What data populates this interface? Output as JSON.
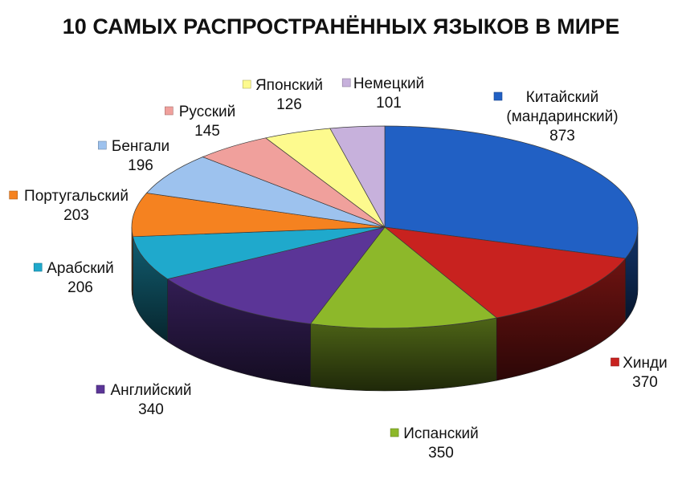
{
  "chart_data": {
    "type": "pie",
    "title": "10 САМЫХ РАСПРОСТРАНЁННЫХ ЯЗЫКОВ В МИРЕ",
    "legend": "labels-outside",
    "slices": [
      {
        "label": [
          "Китайский",
          "(мандаринский)"
        ],
        "value": 873,
        "color": "#2160c4"
      },
      {
        "label": [
          "Хинди"
        ],
        "value": 370,
        "color": "#c8221f"
      },
      {
        "label": [
          "Испанский"
        ],
        "value": 350,
        "color": "#8db82a"
      },
      {
        "label": [
          "Английский"
        ],
        "value": 340,
        "color": "#5b3597"
      },
      {
        "label": [
          "Арабский"
        ],
        "value": 206,
        "color": "#1fa9cc"
      },
      {
        "label": [
          "Португальский"
        ],
        "value": 203,
        "color": "#f58220"
      },
      {
        "label": [
          "Бенгали"
        ],
        "value": 196,
        "color": "#9dc2ee"
      },
      {
        "label": [
          "Русский"
        ],
        "value": 145,
        "color": "#f0a09c"
      },
      {
        "label": [
          "Японский"
        ],
        "value": 126,
        "color": "#fdfa8e"
      },
      {
        "label": [
          "Немецкий"
        ],
        "value": 101,
        "color": "#c7b1dc"
      }
    ]
  }
}
